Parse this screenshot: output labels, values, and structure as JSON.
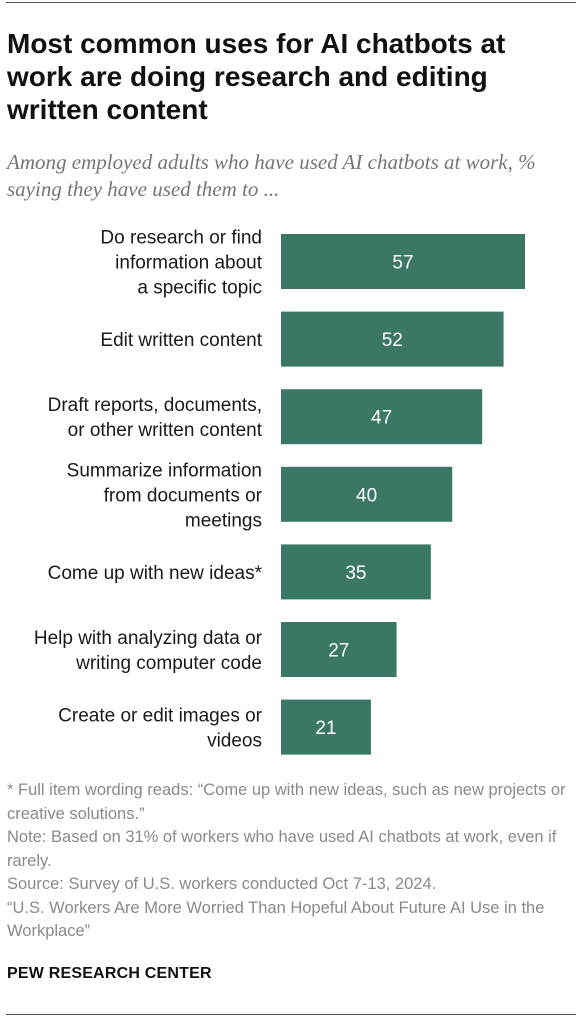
{
  "title": "Most common uses for AI chatbots at work are doing research and editing written content",
  "subtitle": "Among employed adults who have used AI chatbots at work, % saying they have used them to ...",
  "chart_data": {
    "type": "bar",
    "orientation": "horizontal",
    "categories": [
      [
        "Do research or find",
        "information about",
        "a specific topic"
      ],
      [
        "Edit written content"
      ],
      [
        "Draft reports, documents,",
        "or other written content"
      ],
      [
        "Summarize information",
        "from documents or",
        "meetings"
      ],
      [
        "Come up with new ideas*"
      ],
      [
        "Help with analyzing data or",
        "writing computer code"
      ],
      [
        "Create or edit images or",
        "videos"
      ]
    ],
    "values": [
      57,
      52,
      47,
      40,
      35,
      27,
      21
    ],
    "xlim": [
      0,
      57
    ],
    "grid": false,
    "legend": "none",
    "bar_color": "#3a7766"
  },
  "notes": {
    "footnote": "* Full item wording reads: “Come up with new ideas, such as new projects or creative solutions.”",
    "note": "Note: Based on 31% of workers who have used AI chatbots at work, even if rarely.",
    "source": "Source: Survey of U.S. workers conducted Oct 7-13, 2024.",
    "report": "“U.S. Workers Are More Worried Than Hopeful About Future AI Use in the Workplace”"
  },
  "brand": "PEW RESEARCH CENTER"
}
